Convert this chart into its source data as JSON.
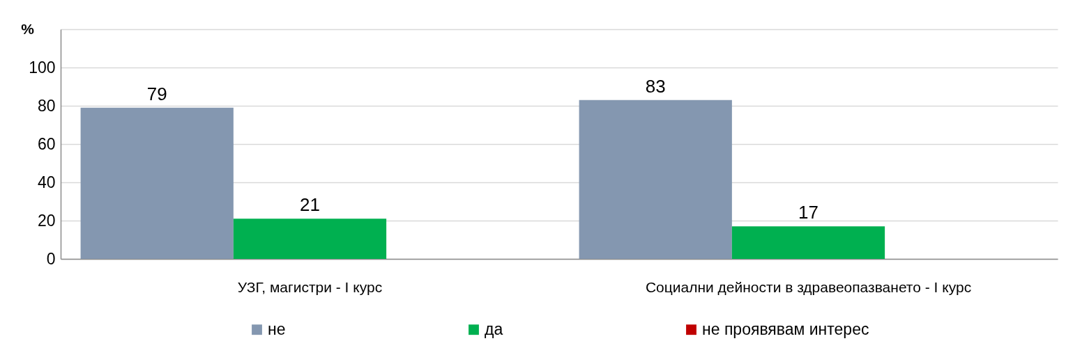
{
  "chart_data": {
    "type": "bar",
    "ylabel": "%",
    "categories": [
      "УЗГ, магистри - I курс",
      "Социални дейности в здравеопазването - I курс"
    ],
    "series": [
      {
        "name": "не",
        "color": "#8497b0",
        "values": [
          79,
          83
        ]
      },
      {
        "name": "да",
        "color": "#00b050",
        "values": [
          21,
          17
        ]
      },
      {
        "name": "не проявявам интерес",
        "color": "#c00000",
        "values": [
          null,
          null
        ]
      }
    ],
    "ylim": [
      0,
      120
    ],
    "yticks": [
      0,
      20,
      40,
      60,
      80,
      100,
      {
        "value": 120,
        "label": null
      }
    ],
    "grid": "y",
    "legend": "bottom",
    "data_labels": true
  }
}
